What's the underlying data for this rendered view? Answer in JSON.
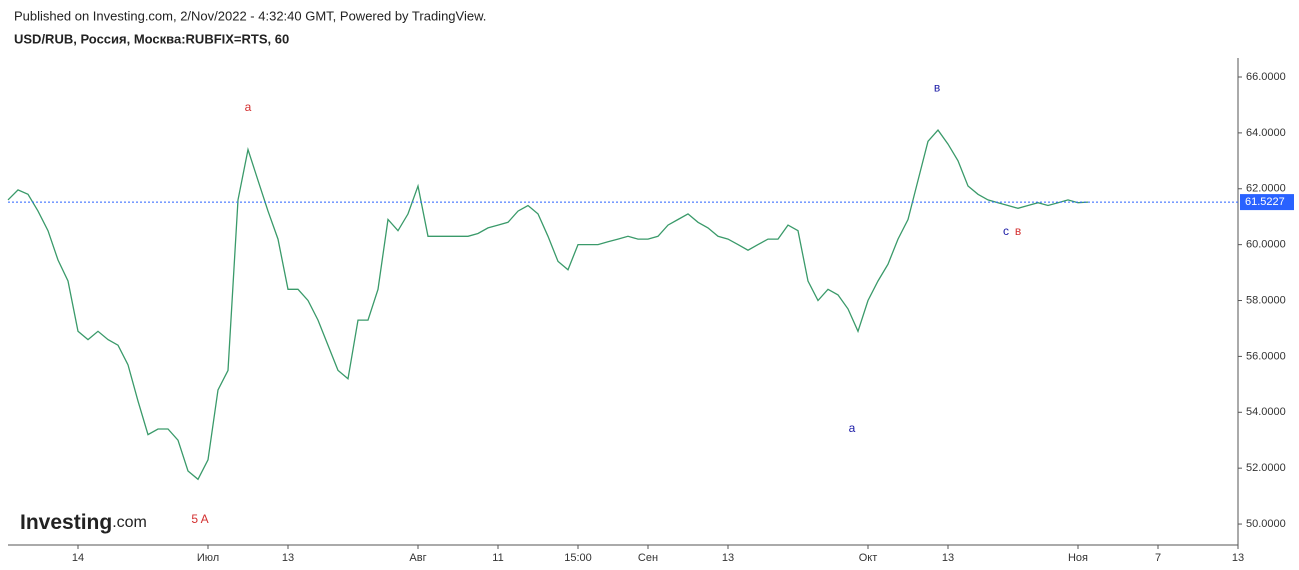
{
  "header": {
    "published": "Published on Investing.com, 2/Nov/2022 - 4:32:40 GMT, Powered by TradingView.",
    "symbol": "USD/RUB, Россия, Москва:RUBFIX=RTS, 60"
  },
  "logo": {
    "name": "Investing",
    "suffix": ".com"
  },
  "chart_data": {
    "type": "line",
    "color": "#3a9a6a",
    "categories": [
      null,
      null,
      null,
      null,
      null,
      null,
      null,
      "14",
      null,
      null,
      null,
      null,
      null,
      null,
      null,
      null,
      null,
      null,
      null,
      null,
      "Июл",
      null,
      null,
      null,
      null,
      null,
      null,
      null,
      "13",
      null,
      null,
      null,
      null,
      null,
      null,
      null,
      null,
      null,
      null,
      null,
      null,
      "Авг",
      null,
      null,
      null,
      null,
      null,
      null,
      null,
      "11",
      null,
      null,
      null,
      null,
      null,
      null,
      null,
      "15:00",
      null,
      null,
      null,
      null,
      null,
      null,
      "Сен",
      null,
      null,
      null,
      null,
      null,
      null,
      null,
      "13",
      null,
      null,
      null,
      null,
      null,
      null,
      null,
      null,
      null,
      null,
      null,
      null,
      null,
      "Окт",
      null,
      null,
      null,
      null,
      null,
      null,
      null,
      "13",
      null,
      null,
      null,
      null,
      null,
      null,
      null,
      null,
      null,
      null,
      null,
      null,
      "Ноя",
      null,
      null,
      null,
      null,
      null,
      null,
      null,
      "7",
      null,
      null,
      null,
      null,
      null,
      null,
      null,
      "13"
    ],
    "values": [
      61.6,
      61.96,
      61.8,
      61.2,
      60.5,
      59.45,
      58.7,
      56.9,
      56.6,
      56.9,
      56.6,
      56.4,
      55.7,
      54.4,
      53.2,
      53.4,
      53.4,
      53.0,
      51.9,
      51.6,
      52.3,
      54.8,
      55.5,
      61.6,
      63.4,
      62.3,
      61.2,
      60.2,
      58.4,
      58.4,
      58.0,
      57.3,
      56.4,
      55.5,
      55.2,
      57.3,
      57.3,
      58.4,
      60.9,
      60.5,
      61.1,
      62.1,
      60.3,
      60.3,
      60.3,
      60.3,
      60.3,
      60.4,
      60.6,
      60.7,
      60.8,
      61.2,
      61.4,
      61.1,
      60.3,
      59.4,
      59.1,
      60.0,
      60.0,
      60.0,
      60.1,
      60.2,
      60.3,
      60.2,
      60.2,
      60.3,
      60.7,
      60.9,
      61.1,
      60.8,
      60.6,
      60.3,
      60.2,
      60.0,
      59.8,
      60.0,
      60.2,
      60.2,
      60.7,
      60.5,
      58.7,
      58.0,
      58.4,
      58.2,
      57.7,
      56.9,
      58.0,
      58.7,
      59.3,
      60.2,
      60.9,
      62.3,
      63.7,
      64.1,
      63.6,
      63.0,
      62.1,
      61.8,
      61.6,
      61.5,
      61.4,
      61.3,
      61.4,
      61.5,
      61.4,
      61.5,
      61.6,
      61.5,
      61.5227,
      null,
      null,
      null,
      null,
      null,
      null,
      null,
      null,
      null,
      null,
      null,
      null,
      null,
      null,
      null
    ],
    "ylim": [
      49.25,
      66.68
    ],
    "yticks": [
      {
        "value": 50,
        "label": "50.0000"
      },
      {
        "value": 52,
        "label": "52.0000"
      },
      {
        "value": 54,
        "label": "54.0000"
      },
      {
        "value": 56,
        "label": "56.0000"
      },
      {
        "value": 58,
        "label": "58.0000"
      },
      {
        "value": 60,
        "label": "60.0000"
      },
      {
        "value": 62,
        "label": "62.0000"
      },
      {
        "value": 64,
        "label": "64.0000"
      },
      {
        "value": 66,
        "label": "66.0000"
      }
    ],
    "last_price": {
      "value": 61.5227,
      "label": "61.5227",
      "color": "#2962ff"
    },
    "annotations": [
      {
        "text": "a",
        "x": 24,
        "y": 64.9,
        "color": "#d32f2f"
      },
      {
        "text": "5 A",
        "x": 19.2,
        "y": 50.15,
        "color": "#d32f2f"
      },
      {
        "text": "в",
        "x": 92.9,
        "y": 65.6,
        "color": "#1a1aa6"
      },
      {
        "text": "a",
        "x": 84.4,
        "y": 53.4,
        "color": "#1a1aa6"
      },
      {
        "text": "c",
        "x": 99.8,
        "y": 60.45,
        "color": "#1a1aa6"
      },
      {
        "text": "в",
        "x": 101,
        "y": 60.45,
        "color": "#d32f2f"
      }
    ]
  }
}
